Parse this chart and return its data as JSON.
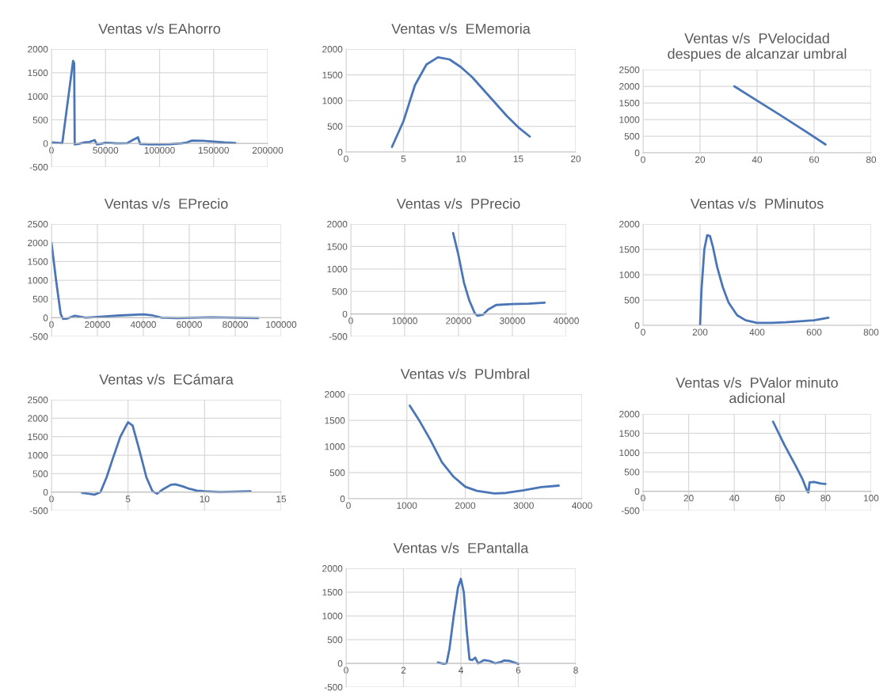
{
  "chart_data": [
    {
      "type": "line",
      "title": "Ventas v/s EAhorro",
      "xlim": [
        0,
        200000
      ],
      "xticks": [
        0,
        50000,
        100000,
        150000,
        200000
      ],
      "ylim": [
        -500,
        2000
      ],
      "yticks": [
        -500,
        0,
        500,
        1000,
        1500,
        2000
      ],
      "grid": true,
      "x": [
        0,
        5000,
        10000,
        20000,
        21000,
        21500,
        25000,
        30000,
        35000,
        40000,
        42000,
        45000,
        50000,
        55000,
        60000,
        70000,
        75000,
        80000,
        82000,
        90000,
        100000,
        110000,
        120000,
        125000,
        130000,
        140000,
        150000,
        160000,
        170000
      ],
      "series": [
        {
          "color": "#4a76b8",
          "values": [
            20,
            15,
            5,
            1750,
            1700,
            -20,
            -10,
            20,
            30,
            70,
            -20,
            -10,
            15,
            10,
            0,
            5,
            70,
            130,
            -10,
            -20,
            -20,
            -15,
            0,
            20,
            60,
            55,
            40,
            20,
            10
          ]
        }
      ]
    },
    {
      "type": "line",
      "title": "Ventas v/s  EMemoria",
      "xlim": [
        0,
        20
      ],
      "xticks": [
        0,
        5,
        10,
        15,
        20
      ],
      "ylim": [
        0,
        2000
      ],
      "yticks": [
        0,
        500,
        1000,
        1500,
        2000
      ],
      "grid": true,
      "x": [
        4,
        5,
        6,
        7,
        8,
        9,
        10,
        11,
        12,
        13,
        14,
        15,
        16
      ],
      "series": [
        {
          "color": "#4a76b8",
          "values": [
            100,
            600,
            1300,
            1700,
            1840,
            1800,
            1650,
            1450,
            1200,
            950,
            700,
            480,
            300
          ]
        }
      ]
    },
    {
      "type": "line",
      "title": "Ventas v/s  PVelocidad\ndespues de alcanzar umbral",
      "xlim": [
        0,
        80
      ],
      "xticks": [
        0,
        20,
        40,
        60,
        80
      ],
      "ylim": [
        0,
        2500
      ],
      "yticks": [
        0,
        500,
        1000,
        1500,
        2000,
        2500
      ],
      "grid": true,
      "x": [
        32,
        40,
        48,
        56,
        64
      ],
      "series": [
        {
          "color": "#4a76b8",
          "values": [
            2000,
            1570,
            1140,
            700,
            250
          ]
        }
      ]
    },
    {
      "type": "line",
      "title": "Ventas v/s  EPrecio",
      "xlim": [
        0,
        100000
      ],
      "xticks": [
        0,
        20000,
        40000,
        60000,
        80000,
        100000
      ],
      "ylim": [
        -500,
        2500
      ],
      "yticks": [
        -500,
        0,
        500,
        1000,
        1500,
        2000,
        2500
      ],
      "grid": true,
      "x": [
        0,
        2000,
        4000,
        5000,
        7000,
        10000,
        12000,
        15000,
        20000,
        30000,
        40000,
        44000,
        48000,
        55000,
        70000,
        80000,
        90000
      ],
      "series": [
        {
          "color": "#4a76b8",
          "values": [
            2000,
            1000,
            100,
            -30,
            -20,
            50,
            30,
            0,
            20,
            60,
            90,
            60,
            0,
            -10,
            10,
            0,
            -10
          ]
        }
      ]
    },
    {
      "type": "line",
      "title": "Ventas v/s  PPrecio",
      "xlim": [
        0,
        40000
      ],
      "xticks": [
        0,
        10000,
        20000,
        30000,
        40000
      ],
      "ylim": [
        -500,
        2000
      ],
      "yticks": [
        -500,
        0,
        500,
        1000,
        1500,
        2000
      ],
      "grid": true,
      "x": [
        19000,
        20000,
        21000,
        22000,
        23000,
        23500,
        24500,
        25500,
        27000,
        30000,
        33000,
        36000
      ],
      "series": [
        {
          "color": "#4a76b8",
          "values": [
            1800,
            1300,
            700,
            300,
            20,
            -40,
            -20,
            100,
            200,
            220,
            230,
            250
          ]
        }
      ]
    },
    {
      "type": "line",
      "title": "Ventas v/s  PMinutos",
      "xlim": [
        0,
        800
      ],
      "xticks": [
        0,
        200,
        400,
        600,
        800
      ],
      "ylim": [
        0,
        2000
      ],
      "yticks": [
        0,
        500,
        1000,
        1500,
        2000
      ],
      "grid": true,
      "x": [
        200,
        205,
        215,
        225,
        235,
        245,
        260,
        280,
        300,
        330,
        360,
        400,
        450,
        500,
        550,
        600,
        650
      ],
      "series": [
        {
          "color": "#4a76b8",
          "values": [
            0,
            700,
            1500,
            1780,
            1760,
            1550,
            1150,
            750,
            450,
            200,
            100,
            50,
            50,
            60,
            80,
            100,
            150
          ]
        }
      ]
    },
    {
      "type": "line",
      "title": "Ventas v/s  ECámara",
      "xlim": [
        0,
        15
      ],
      "xticks": [
        0,
        5,
        10,
        15
      ],
      "ylim": [
        -500,
        2500
      ],
      "yticks": [
        -500,
        0,
        500,
        1000,
        1500,
        2000,
        2500
      ],
      "grid": true,
      "x": [
        2,
        2.5,
        2.8,
        3.2,
        3.6,
        4,
        4.5,
        5,
        5.3,
        5.7,
        6.2,
        6.6,
        6.9,
        7.3,
        7.8,
        8.1,
        8.6,
        9,
        9.5,
        10,
        11,
        12,
        13
      ],
      "series": [
        {
          "color": "#4a76b8",
          "values": [
            -20,
            -50,
            -70,
            0,
            400,
            900,
            1500,
            1890,
            1800,
            1200,
            400,
            20,
            -40,
            80,
            200,
            210,
            150,
            90,
            40,
            20,
            0,
            10,
            20
          ]
        }
      ]
    },
    {
      "type": "line",
      "title": "Ventas v/s  PUmbral",
      "xlim": [
        0,
        4000
      ],
      "xticks": [
        0,
        1000,
        2000,
        3000,
        4000
      ],
      "ylim": [
        0,
        2000
      ],
      "yticks": [
        0,
        500,
        1000,
        1500,
        2000
      ],
      "grid": true,
      "x": [
        1050,
        1200,
        1400,
        1600,
        1800,
        2000,
        2200,
        2500,
        2700,
        3000,
        3300,
        3600
      ],
      "series": [
        {
          "color": "#4a76b8",
          "values": [
            1780,
            1520,
            1130,
            700,
            420,
            230,
            150,
            100,
            110,
            160,
            220,
            250
          ]
        }
      ]
    },
    {
      "type": "line",
      "title": "Ventas v/s  PValor minuto\nadicional",
      "xlim": [
        0,
        100
      ],
      "xticks": [
        0,
        20,
        40,
        60,
        80,
        100
      ],
      "ylim": [
        -500,
        2000
      ],
      "yticks": [
        -500,
        0,
        500,
        1000,
        1500,
        2000
      ],
      "grid": true,
      "x": [
        57,
        62,
        67,
        70,
        72,
        72.5,
        73,
        75,
        78,
        80
      ],
      "series": [
        {
          "color": "#4a76b8",
          "values": [
            1800,
            1200,
            650,
            300,
            0,
            -30,
            230,
            240,
            200,
            190
          ]
        }
      ]
    },
    {
      "type": "line",
      "title": "Ventas v/s  EPantalla",
      "xlim": [
        0,
        8
      ],
      "xticks": [
        0,
        2,
        4,
        6,
        8
      ],
      "ylim": [
        -500,
        2000
      ],
      "yticks": [
        -500,
        0,
        500,
        1000,
        1500,
        2000
      ],
      "grid": true,
      "x": [
        3.2,
        3.4,
        3.5,
        3.6,
        3.75,
        3.9,
        4,
        4.1,
        4.2,
        4.3,
        4.4,
        4.5,
        4.6,
        4.7,
        4.8,
        5,
        5.2,
        5.4,
        5.5,
        5.7,
        6
      ],
      "series": [
        {
          "color": "#4a76b8",
          "values": [
            20,
            -10,
            0,
            300,
            1000,
            1600,
            1780,
            1500,
            700,
            80,
            70,
            120,
            0,
            30,
            70,
            50,
            0,
            30,
            60,
            50,
            -10
          ]
        }
      ]
    }
  ]
}
